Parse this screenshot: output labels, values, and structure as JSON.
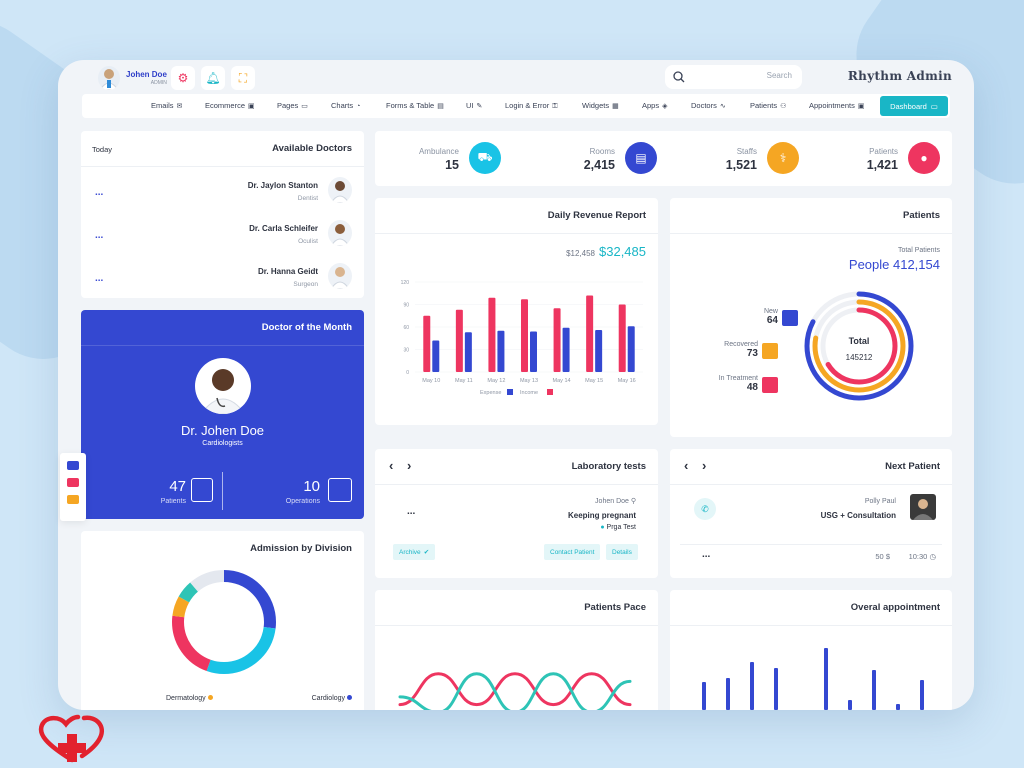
{
  "user": {
    "name": "Johen Doe",
    "role": "ADMIN"
  },
  "search": {
    "placeholder": "Search"
  },
  "brand": "Rhythm Admin",
  "nav": [
    {
      "label": "Emails",
      "icon": "✉"
    },
    {
      "label": "Ecommerce",
      "icon": "▣"
    },
    {
      "label": "Pages",
      "icon": "▭"
    },
    {
      "label": "Charts",
      "icon": "◔"
    },
    {
      "label": "Forms & Table",
      "icon": "▤"
    },
    {
      "label": "UI",
      "icon": "✎"
    },
    {
      "label": "Login & Error",
      "icon": "⚿"
    },
    {
      "label": "Widgets",
      "icon": "▦"
    },
    {
      "label": "Apps",
      "icon": "◈"
    },
    {
      "label": "Doctors",
      "icon": "∿"
    },
    {
      "label": "Patients",
      "icon": "⚇"
    },
    {
      "label": "Appointments",
      "icon": "▣"
    }
  ],
  "nav_active": {
    "label": "Dashboard",
    "icon": "▭"
  },
  "available_doctors": {
    "today_label": "Today",
    "title": "Available Doctors",
    "more_label": "...",
    "doctors": [
      {
        "name": "Dr. Jaylon Stanton",
        "specialty": "Dentist"
      },
      {
        "name": "Dr. Carla Schleifer",
        "specialty": "Oculist"
      },
      {
        "name": "Dr. Hanna Geidt",
        "specialty": "Surgeon"
      }
    ]
  },
  "doctor_of_month": {
    "title": "Doctor of the Month",
    "name": "Dr. Johen Doe",
    "specialty": "Cardiologists",
    "patients_value": "47",
    "patients_label": "Patients",
    "operations_value": "10",
    "operations_label": "Operations"
  },
  "stats": [
    {
      "label": "Ambulance",
      "value": "15",
      "color": "#19c3e6",
      "icon": "⛟"
    },
    {
      "label": "Rooms",
      "value": "2,415",
      "color": "#3448d1",
      "icon": "▤"
    },
    {
      "label": "Staffs",
      "value": "1,521",
      "color": "#f5a623",
      "icon": "⚕"
    },
    {
      "label": "Patients",
      "value": "1,421",
      "color": "#ee3560",
      "icon": "●"
    }
  ],
  "revenue": {
    "title": "Daily Revenue Report",
    "prev": "$12,458",
    "current": "$32,485"
  },
  "patients_summary": {
    "title": "Patients",
    "total_label": "Total Patients",
    "total_value": "People 412,154",
    "center_label": "Total",
    "center_value": "145212",
    "items": [
      {
        "label": "New",
        "value": "64",
        "color": "#3448d1"
      },
      {
        "label": "Recovered",
        "value": "73",
        "color": "#f5a623"
      },
      {
        "label": "In Treatment",
        "value": "48",
        "color": "#ee3560"
      }
    ]
  },
  "lab_tests": {
    "title": "Laboratory tests",
    "more_label": "...",
    "patient": "Johen Doe",
    "status": "Keeping pregnant",
    "test": "Prga Test",
    "archive": "Archive",
    "contact": "Contact Patient",
    "details": "Details"
  },
  "next_patient": {
    "title": "Next Patient",
    "name": "Polly Paul",
    "procedure": "USG + Consultation",
    "more_label": "...",
    "price": "50 $",
    "time": "10:30"
  },
  "admission": {
    "title": "Admission by Division",
    "legend": [
      {
        "label": "Dermatology",
        "color": "#f5a623"
      },
      {
        "label": "Cardiology",
        "color": "#3448d1"
      }
    ]
  },
  "patients_pace": {
    "title": "Patients Pace"
  },
  "overall_appointment": {
    "title": "Overal appointment"
  },
  "chart_data": [
    {
      "type": "bar",
      "categories": [
        "May 10",
        "May 11",
        "May 12",
        "May 13",
        "May 14",
        "May 15",
        "May 16"
      ],
      "series": [
        {
          "name": "Expense",
          "values": [
            42,
            53,
            55,
            54,
            59,
            56,
            61
          ],
          "color": "#3448d1"
        },
        {
          "name": "Income",
          "values": [
            75,
            83,
            99,
            97,
            85,
            102,
            90
          ],
          "color": "#ee3560"
        }
      ],
      "yticks": [
        0,
        30,
        60,
        90,
        120
      ],
      "ylim": [
        0,
        120
      ],
      "legend": "bottom"
    },
    {
      "type": "pie",
      "labels": [
        "Cardiology",
        "Dermatology"
      ],
      "values": [
        0.27,
        0.12
      ],
      "colors": [
        "#3448d1",
        "#f5a623"
      ]
    },
    {
      "type": "line",
      "series": [
        {
          "values": [
            2,
            6,
            2,
            6,
            2,
            6,
            2
          ],
          "color": "#ee3560"
        },
        {
          "values": [
            3,
            1,
            6,
            1,
            6,
            1,
            5
          ],
          "color": "#2ec4b6"
        }
      ]
    },
    {
      "type": "bar",
      "values": [
        28,
        32,
        48,
        42,
        62,
        10,
        40,
        6,
        30
      ],
      "color": "#3448d1"
    }
  ]
}
